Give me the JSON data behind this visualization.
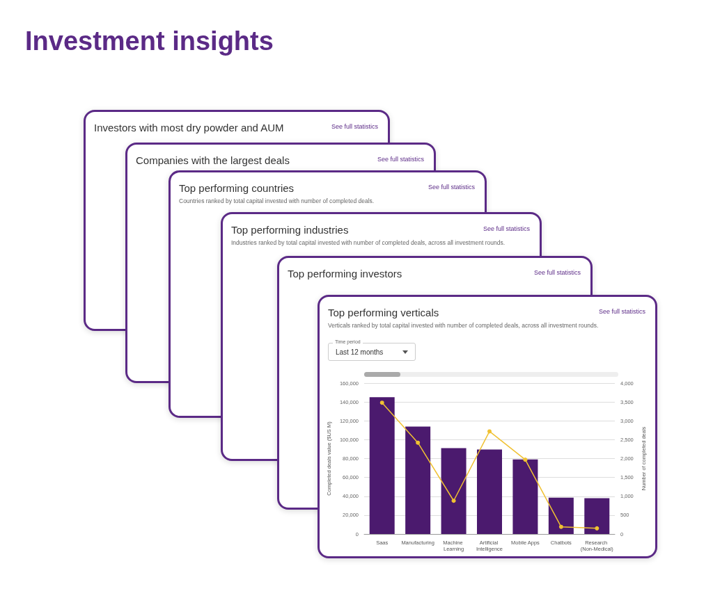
{
  "chart_data": [
    {
      "type": "other",
      "title": "Investment insights"
    },
    {
      "type": "other",
      "title": "Investors with most dry powder and AUM",
      "annotations": [
        "See full statistics"
      ]
    },
    {
      "type": "other",
      "title": "Companies with the largest deals",
      "annotations": [
        "See full statistics"
      ]
    },
    {
      "type": "other",
      "title": "Top performing countries",
      "subtitle": "Countries ranked by total capital invested with number of completed deals.",
      "annotations": [
        "See full statistics"
      ]
    },
    {
      "type": "other",
      "title": "Top performing industries",
      "subtitle": "Industries ranked by total capital invested with number of completed deals, across all investment rounds.",
      "annotations": [
        "See full statistics"
      ]
    },
    {
      "type": "other",
      "title": "Top performing investors",
      "annotations": [
        "See full statistics"
      ]
    },
    {
      "type": "bar",
      "title": "Top performing verticals",
      "subtitle": "Verticals ranked by total capital invested with number of completed deals, across all investment rounds.",
      "annotations": [
        "See full statistics",
        "Time period",
        "Last 12 months"
      ],
      "categories": [
        "Saas",
        "Manufacturing",
        "Machine Learning",
        "Artificial Intelligence",
        "Mobile Apps",
        "Chatbots",
        "Research (Non-Medical)"
      ],
      "series": [
        {
          "type": "bar",
          "color": "#4b1a6e",
          "values": [
            145000,
            114000,
            91000,
            89500,
            79000,
            38500,
            38000
          ]
        },
        {
          "type": "line",
          "axis": "y2",
          "color": "#f0c132",
          "values": [
            3480,
            2420,
            880,
            2720,
            1970,
            190,
            150
          ]
        }
      ],
      "ylabel": "Completed deals value ($US M)",
      "y2label": "Number of completed deals",
      "ylim": [
        0,
        160000
      ],
      "yticks": [
        0,
        {
          "value": 20000,
          "label": "20,000"
        },
        {
          "value": 40000,
          "label": "40,000"
        },
        {
          "value": 60000,
          "label": "60,000"
        },
        {
          "value": 80000,
          "label": "80,000"
        },
        {
          "value": 100000,
          "label": "100,000"
        },
        {
          "value": 120000,
          "label": "120,000"
        },
        {
          "value": 140000,
          "label": "140,000"
        },
        {
          "value": 160000,
          "label": "160,000"
        }
      ],
      "y2lim": [
        0,
        4000
      ],
      "y2ticks": [
        0,
        500,
        {
          "value": 1000,
          "label": "1,000"
        },
        {
          "value": 1500,
          "label": "1,500"
        },
        {
          "value": 2000,
          "label": "2,000"
        },
        {
          "value": 2500,
          "label": "2,500"
        },
        {
          "value": 3000,
          "label": "3,000"
        },
        {
          "value": 3500,
          "label": "3,500"
        },
        {
          "value": 4000,
          "label": "4,000"
        }
      ],
      "grid": "y",
      "marker": "circle",
      "line_style": "solid"
    }
  ]
}
